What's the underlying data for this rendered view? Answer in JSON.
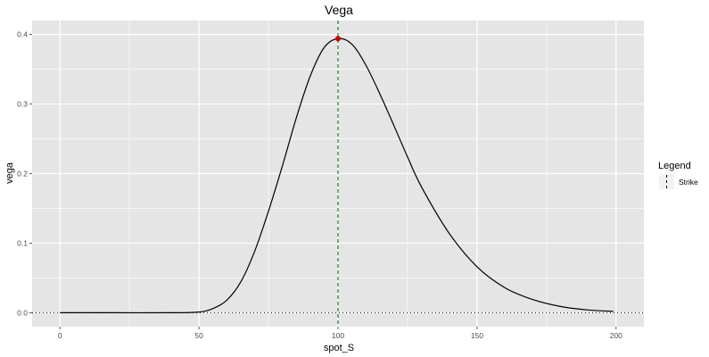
{
  "chart_data": {
    "type": "line",
    "title": "Vega",
    "xlabel": "spot_S",
    "ylabel": "vega",
    "xlim": [
      -10,
      210
    ],
    "ylim": [
      -0.02,
      0.42
    ],
    "x_ticks": [
      0,
      50,
      100,
      150,
      200
    ],
    "x_tick_labels": [
      "0",
      "50",
      "100",
      "150",
      "200"
    ],
    "y_ticks": [
      0.0,
      0.1,
      0.2,
      0.3,
      0.4
    ],
    "y_tick_labels": [
      "0.0",
      "0.1",
      "0.2",
      "0.3",
      "0.4"
    ],
    "grid": true,
    "series": [
      {
        "color": "#000000",
        "x": [
          0,
          20,
          40,
          50,
          55,
          60,
          65,
          70,
          75,
          80,
          85,
          90,
          95,
          100,
          105,
          110,
          115,
          120,
          125,
          130,
          140,
          150,
          160,
          170,
          180,
          190,
          199
        ],
        "y": [
          0.0,
          0.0,
          0.0,
          0.001,
          0.006,
          0.018,
          0.044,
          0.088,
          0.146,
          0.211,
          0.28,
          0.34,
          0.381,
          0.394,
          0.386,
          0.356,
          0.315,
          0.27,
          0.224,
          0.181,
          0.114,
          0.066,
          0.036,
          0.019,
          0.009,
          0.004,
          0.002
        ]
      }
    ],
    "strike": {
      "x": 100,
      "color": "#006400",
      "style": "dashed"
    },
    "highlight_point": {
      "x": 100,
      "y": 0.394,
      "color": "#cc0000"
    },
    "zero_line": {
      "y": 0,
      "style": "dotted",
      "color": "#000000"
    },
    "legend": {
      "title": "Legend",
      "placement": "right",
      "entries": [
        {
          "label": "Strike",
          "style": "dashed",
          "color": "#000000"
        }
      ]
    },
    "colors": {
      "panel_background": "#e5e5e5",
      "grid": "#ffffff"
    }
  }
}
